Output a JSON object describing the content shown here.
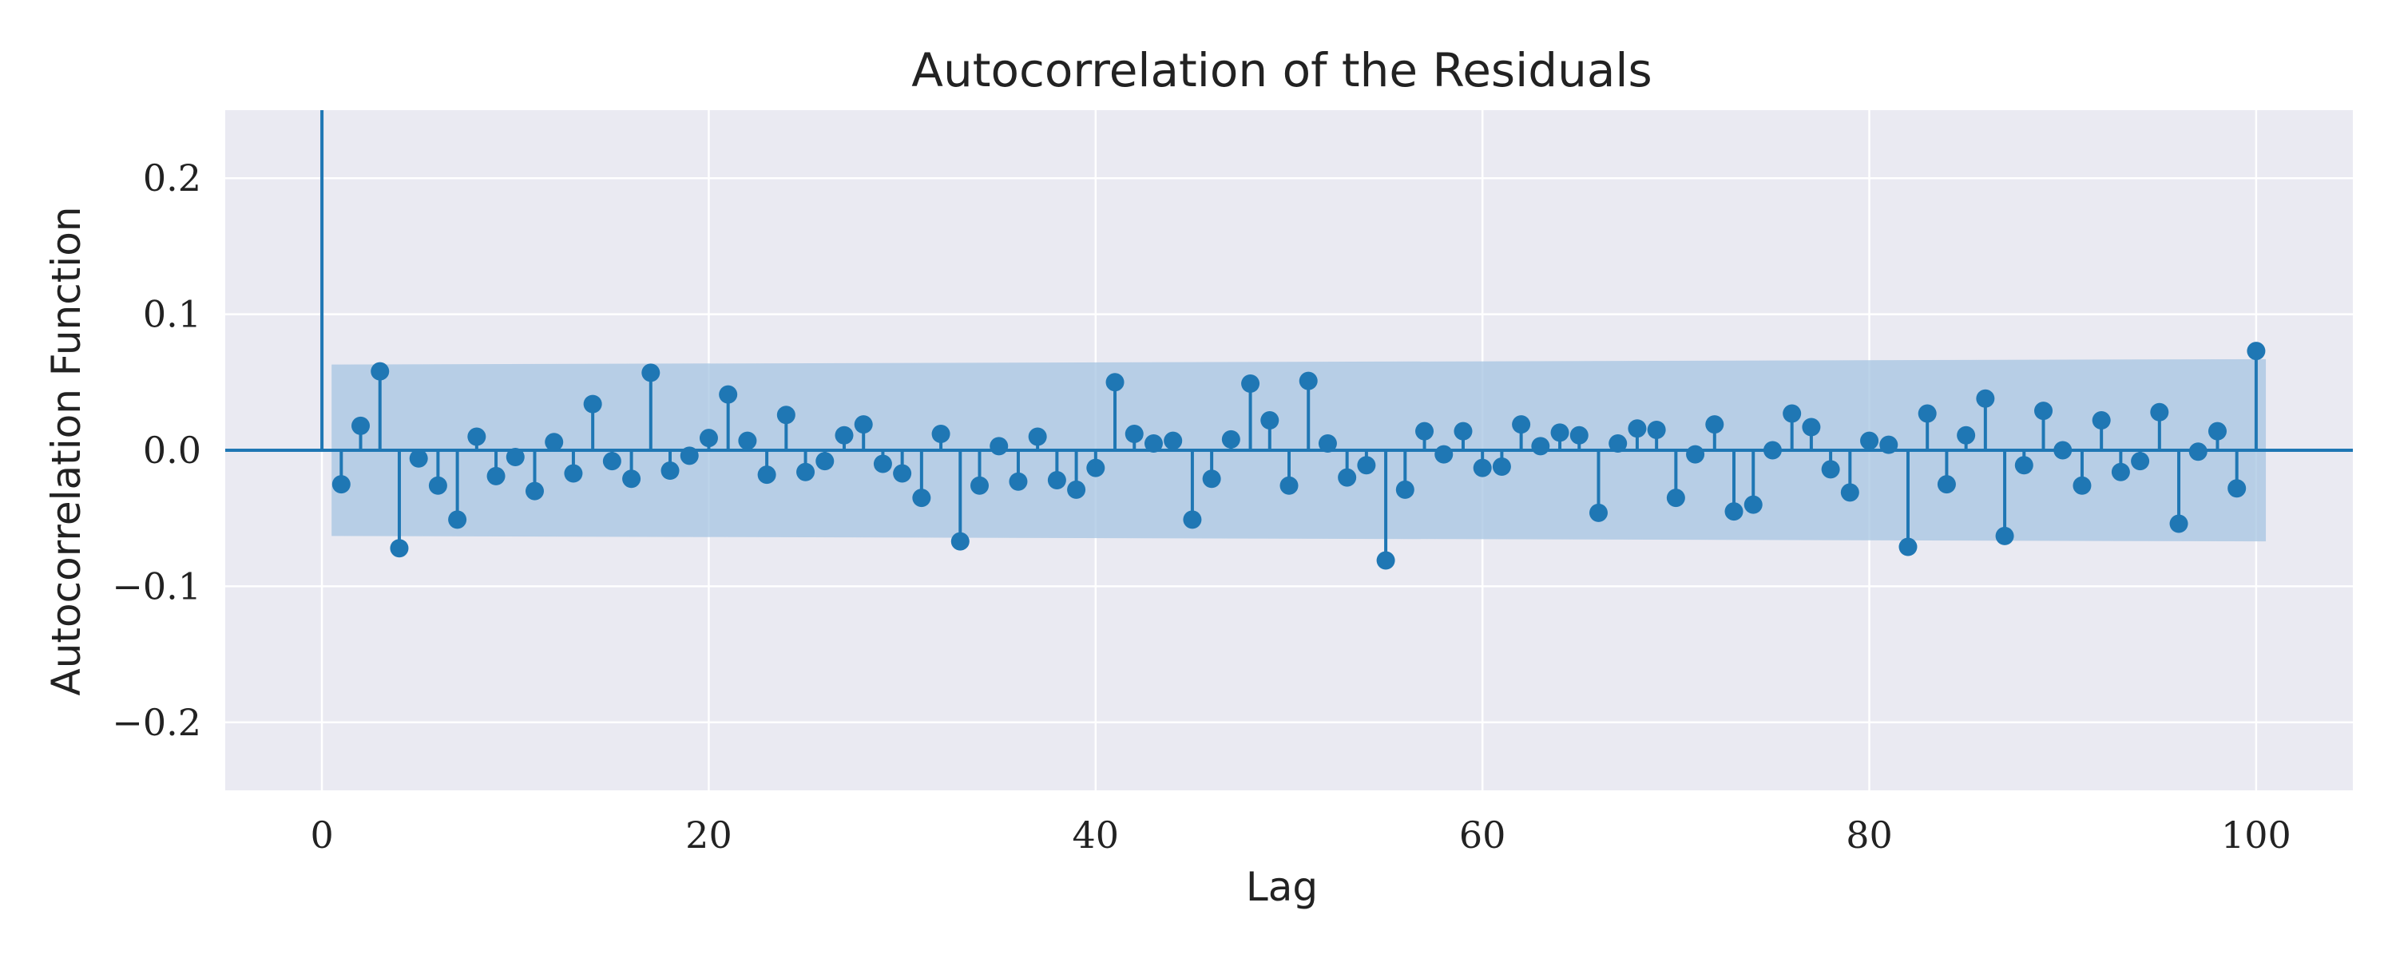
{
  "chart_data": {
    "type": "stem",
    "title": "Autocorrelation of the Residuals",
    "xlabel": "Lag",
    "ylabel": "Autocorrelation Function",
    "xlim": [
      -5,
      105
    ],
    "ylim": [
      -0.25,
      0.25
    ],
    "xticks": [
      0,
      20,
      40,
      60,
      80,
      100
    ],
    "xtick_labels": [
      "0",
      "20",
      "40",
      "60",
      "80",
      "100"
    ],
    "yticks": [
      -0.2,
      -0.1,
      0.0,
      0.1,
      0.2
    ],
    "ytick_labels": [
      "−0.2",
      "−0.1",
      "0.0",
      "0.1",
      "0.2"
    ],
    "grid": true,
    "colors": {
      "stem": "#1f77b4",
      "band": "#a6c4e1",
      "background": "#eaeaf2",
      "grid": "#ffffff"
    },
    "lag0_value": 1.0,
    "confidence_band": {
      "x_start": 0.5,
      "x_end": 100.5,
      "upper_start": 0.063,
      "upper_end": 0.067
    },
    "lags": [
      1,
      2,
      3,
      4,
      5,
      6,
      7,
      8,
      9,
      10,
      11,
      12,
      13,
      14,
      15,
      16,
      17,
      18,
      19,
      20,
      21,
      22,
      23,
      24,
      25,
      26,
      27,
      28,
      29,
      30,
      31,
      32,
      33,
      34,
      35,
      36,
      37,
      38,
      39,
      40,
      41,
      42,
      43,
      44,
      45,
      46,
      47,
      48,
      49,
      50,
      51,
      52,
      53,
      54,
      55,
      56,
      57,
      58,
      59,
      60,
      61,
      62,
      63,
      64,
      65,
      66,
      67,
      68,
      69,
      70,
      71,
      72,
      73,
      74,
      75,
      76,
      77,
      78,
      79,
      80,
      81,
      82,
      83,
      84,
      85,
      86,
      87,
      88,
      89,
      90,
      91,
      92,
      93,
      94,
      95,
      96,
      97,
      98,
      99,
      100
    ],
    "values": [
      -0.025,
      0.018,
      0.058,
      -0.072,
      -0.006,
      -0.026,
      -0.051,
      0.01,
      -0.019,
      -0.005,
      -0.03,
      0.006,
      -0.017,
      0.034,
      -0.008,
      -0.021,
      0.057,
      -0.015,
      -0.004,
      0.009,
      0.041,
      0.007,
      -0.018,
      0.026,
      -0.016,
      -0.008,
      0.011,
      0.019,
      -0.01,
      -0.017,
      -0.035,
      0.012,
      -0.067,
      -0.026,
      0.003,
      -0.023,
      0.01,
      -0.022,
      -0.029,
      -0.013,
      0.05,
      0.012,
      0.005,
      0.007,
      -0.051,
      -0.021,
      0.008,
      0.049,
      0.022,
      -0.026,
      0.051,
      0.005,
      -0.02,
      -0.011,
      -0.081,
      -0.029,
      0.014,
      -0.003,
      0.014,
      -0.013,
      -0.012,
      0.019,
      0.003,
      0.013,
      0.011,
      -0.046,
      0.005,
      0.016,
      0.015,
      -0.035,
      -0.003,
      0.019,
      -0.045,
      -0.04,
      0.0,
      0.027,
      0.017,
      -0.014,
      -0.031,
      0.007,
      0.004,
      -0.071,
      0.027,
      -0.025,
      0.011,
      0.038,
      -0.063,
      -0.011,
      0.029,
      0.0,
      -0.026,
      0.022,
      -0.016,
      -0.008,
      0.028,
      -0.054,
      -0.001,
      0.014,
      -0.028,
      0.073
    ]
  }
}
